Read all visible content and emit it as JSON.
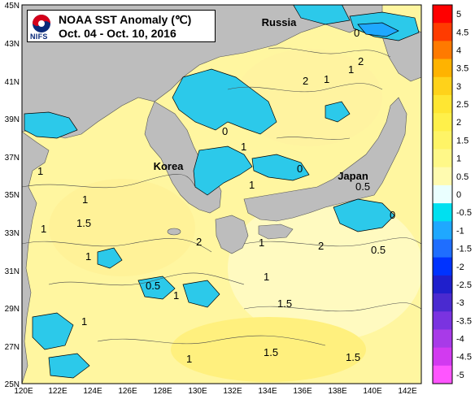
{
  "title": {
    "agency": "NIFS",
    "line1": "NOAA SST Anomaly (℃)",
    "line2": "Oct. 04 - Oct. 10, 2016"
  },
  "axes": {
    "lon_labels": [
      "120E",
      "122E",
      "124E",
      "126E",
      "128E",
      "130E",
      "132E",
      "134E",
      "136E",
      "138E",
      "140E",
      "142E"
    ],
    "lat_labels": [
      "45N",
      "43N",
      "41N",
      "39N",
      "37N",
      "35N",
      "33N",
      "31N",
      "29N",
      "27N",
      "25N"
    ]
  },
  "place_labels": [
    "Russia",
    "Korea",
    "Japan"
  ],
  "contour_labels": [
    "2",
    "1",
    "0",
    "0",
    "1",
    "1",
    "2",
    "1",
    "1",
    "0",
    "0",
    "1",
    "0.5",
    "1",
    "1",
    "2",
    "1",
    "1.5",
    "1",
    "0.5",
    "1.5",
    "1",
    "1.5",
    "1.5",
    "1",
    "1",
    "2",
    "0.5"
  ],
  "colorbar": {
    "labels": [
      "5",
      "4.5",
      "4",
      "3.5",
      "3",
      "2.5",
      "2",
      "1.5",
      "1",
      "0.5",
      "0",
      "-0.5",
      "-1",
      "-1.5",
      "-2",
      "-2.5",
      "-3",
      "-3.5",
      "-4",
      "-4.5",
      "-5"
    ],
    "colors": [
      "#ff0000",
      "#ff3b00",
      "#ff7a00",
      "#ffb300",
      "#ffd21a",
      "#ffe632",
      "#fff04a",
      "#fff466",
      "#fff888",
      "#fffbb0",
      "#eaffff",
      "#00e0f0",
      "#1fa8ff",
      "#1f6eff",
      "#0033ff",
      "#1f1fcc",
      "#4a2ad0",
      "#7a33e0",
      "#a83ae8",
      "#d23af0",
      "#ff55ff"
    ]
  }
}
